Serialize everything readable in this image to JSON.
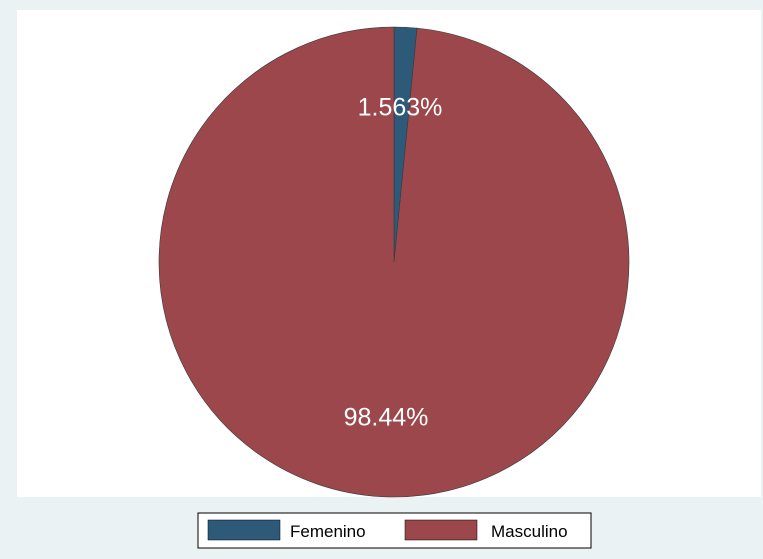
{
  "chart_data": {
    "type": "pie",
    "slices": [
      {
        "label": "Femenino",
        "value": 1.563,
        "display": "1.563%",
        "color": "#2e5a7a"
      },
      {
        "label": "Masculino",
        "value": 98.44,
        "display": "98.44%",
        "color": "#9b474c"
      }
    ],
    "start_angle_deg": 0,
    "direction": "clockwise",
    "legend_position": "bottom",
    "plot_background": "#ffffff",
    "outer_background": "#eaf2f3"
  }
}
